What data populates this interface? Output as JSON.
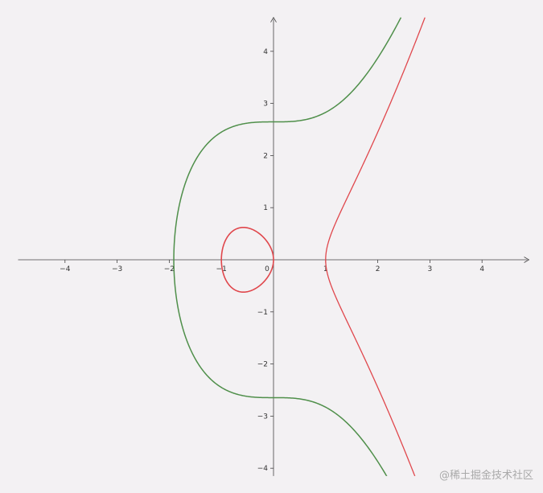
{
  "chart_data": {
    "type": "line",
    "title": "",
    "xlabel": "",
    "ylabel": "",
    "xlim": [
      -4.9,
      4.9
    ],
    "ylim": [
      -4.15,
      4.65
    ],
    "x_ticks": [
      -4,
      -3,
      -2,
      -1,
      0,
      1,
      2,
      3,
      4
    ],
    "y_ticks": [
      -4,
      -3,
      -2,
      -1,
      1,
      2,
      3,
      4
    ],
    "x_tick_labels": [
      "−4",
      "−3",
      "−2",
      "−1",
      "0",
      "1",
      "2",
      "3",
      "4"
    ],
    "y_tick_labels": [
      "−4",
      "−3",
      "−2",
      "−1",
      "1",
      "2",
      "3",
      "4"
    ],
    "grid": false,
    "series": [
      {
        "equation": "y^2 = x^3 - x",
        "color": "#e0474c"
      },
      {
        "equation": "y^2 = x^3 + 7",
        "color": "#4f8f4a"
      }
    ]
  },
  "watermark": "@稀土掘金技术社区"
}
